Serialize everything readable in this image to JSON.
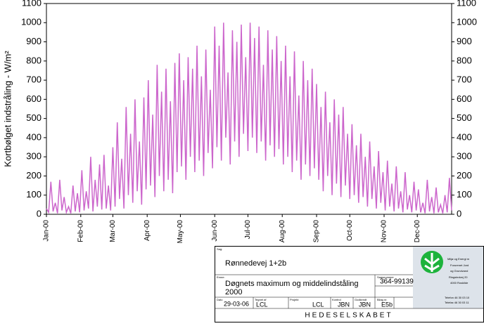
{
  "chart_data": {
    "type": "line",
    "y_label": "Kortbølget indstråling - W/m²",
    "xlim": [
      0,
      366
    ],
    "ylim": [
      0,
      1100
    ],
    "yticks": [
      0,
      100,
      200,
      300,
      400,
      500,
      600,
      700,
      800,
      900,
      1000,
      1100
    ],
    "y2lim": [
      0,
      1100
    ],
    "y2ticks": [
      0,
      100,
      200,
      300,
      400,
      500,
      600,
      700,
      800,
      900,
      1000,
      1100
    ],
    "xticks": [
      {
        "value": 0,
        "label": "Jan-00"
      },
      {
        "value": 31,
        "label": "Feb-00"
      },
      {
        "value": 60,
        "label": "Mar-00"
      },
      {
        "value": 91,
        "label": "Apr-00"
      },
      {
        "value": 121,
        "label": "May-00"
      },
      {
        "value": 152,
        "label": "Jun-00"
      },
      {
        "value": 182,
        "label": "Jul-00"
      },
      {
        "value": 213,
        "label": "Aug-00"
      },
      {
        "value": 244,
        "label": "Sep-00"
      },
      {
        "value": 274,
        "label": "Oct-00"
      },
      {
        "value": 305,
        "label": "Nov-00"
      },
      {
        "value": 335,
        "label": "Dec-00"
      }
    ],
    "x": [
      0,
      2,
      4,
      6,
      8,
      10,
      12,
      14,
      16,
      18,
      20,
      22,
      24,
      26,
      28,
      30,
      32,
      34,
      36,
      38,
      40,
      42,
      44,
      46,
      48,
      50,
      52,
      54,
      56,
      58,
      60,
      62,
      64,
      66,
      68,
      70,
      72,
      74,
      76,
      78,
      80,
      82,
      84,
      86,
      88,
      90,
      92,
      94,
      96,
      98,
      100,
      102,
      104,
      106,
      108,
      110,
      112,
      114,
      116,
      118,
      120,
      122,
      124,
      126,
      128,
      130,
      132,
      134,
      136,
      138,
      140,
      142,
      144,
      146,
      148,
      150,
      152,
      154,
      156,
      158,
      160,
      162,
      164,
      166,
      168,
      170,
      172,
      174,
      176,
      178,
      180,
      182,
      184,
      186,
      188,
      190,
      192,
      194,
      196,
      198,
      200,
      202,
      204,
      206,
      208,
      210,
      212,
      214,
      216,
      218,
      220,
      222,
      224,
      226,
      228,
      230,
      232,
      234,
      236,
      238,
      240,
      242,
      244,
      246,
      248,
      250,
      252,
      254,
      256,
      258,
      260,
      262,
      264,
      266,
      268,
      270,
      272,
      274,
      276,
      278,
      280,
      282,
      284,
      286,
      288,
      290,
      292,
      294,
      296,
      298,
      300,
      302,
      304,
      306,
      308,
      310,
      312,
      314,
      316,
      318,
      320,
      322,
      324,
      326,
      328,
      330,
      332,
      334,
      336,
      338,
      340,
      342,
      344,
      346,
      348,
      350,
      352,
      354,
      356,
      358,
      360,
      362,
      364,
      366
    ],
    "series": [
      {
        "color": "#cc66cc",
        "values": [
          30,
          10,
          170,
          15,
          60,
          5,
          180,
          20,
          90,
          10,
          40,
          5,
          150,
          15,
          110,
          10,
          230,
          20,
          120,
          30,
          300,
          15,
          180,
          40,
          260,
          25,
          310,
          30,
          150,
          20,
          350,
          40,
          480,
          80,
          290,
          30,
          560,
          100,
          420,
          60,
          600,
          120,
          380,
          50,
          610,
          130,
          700,
          150,
          520,
          90,
          780,
          200,
          640,
          120,
          760,
          180,
          590,
          110,
          790,
          220,
          840,
          250,
          700,
          180,
          820,
          300,
          760,
          220,
          880,
          280,
          720,
          200,
          860,
          320,
          650,
          240,
          980,
          350,
          880,
          280,
          1000,
          400,
          740,
          260,
          960,
          380,
          900,
          300,
          990,
          420,
          820,
          330,
          1000,
          400,
          920,
          320,
          980,
          380,
          780,
          280,
          960,
          360,
          860,
          300,
          930,
          340,
          800,
          260,
          880,
          300,
          720,
          220,
          850,
          280,
          620,
          180,
          800,
          260,
          700,
          200,
          760,
          240,
          680,
          180,
          560,
          120,
          640,
          200,
          480,
          100,
          600,
          160,
          520,
          90,
          560,
          150,
          420,
          80,
          470,
          100,
          360,
          60,
          420,
          90,
          300,
          40,
          380,
          80,
          250,
          30,
          330,
          60,
          220,
          20,
          280,
          40,
          160,
          15,
          250,
          30,
          120,
          10,
          220,
          25,
          100,
          10,
          170,
          20,
          130,
          10,
          60,
          5,
          180,
          15,
          90,
          5,
          140,
          10,
          50,
          5,
          100,
          10,
          190,
          20
        ]
      }
    ]
  },
  "title_block": {
    "sag_label": "Sag:",
    "sag": "Rønnedevej 1+2b",
    "emne_label": "Emne:",
    "emne_1": "Døgnets maximum og middelindståling",
    "emne_2": "2000",
    "sagsnr_label": "Sagsnummer",
    "sagsnr": "364-99139",
    "dato_label": "Dato",
    "dato": "29-03-06",
    "tegnet_label": "Tegnet af",
    "tegnet": "LCL",
    "proj_label": "Projekt",
    "proj": "LCL",
    "kontrol_label": "Kontrol",
    "kontrol": "JBN",
    "godkendt_label": "Godkendt",
    "godkendt": "JBN",
    "bilag_label": "Bilag nr.",
    "bilag": "E5b",
    "company": "HEDESELSKABET",
    "address": [
      "Miljø og Energi m",
      "Forurenet Jord",
      "og Grundvand",
      "Ringstedvej 20",
      "4000 Roskilde"
    ],
    "phone": [
      "Telefon 46 30 03 10",
      "Telefax 46 30 03 11"
    ]
  }
}
